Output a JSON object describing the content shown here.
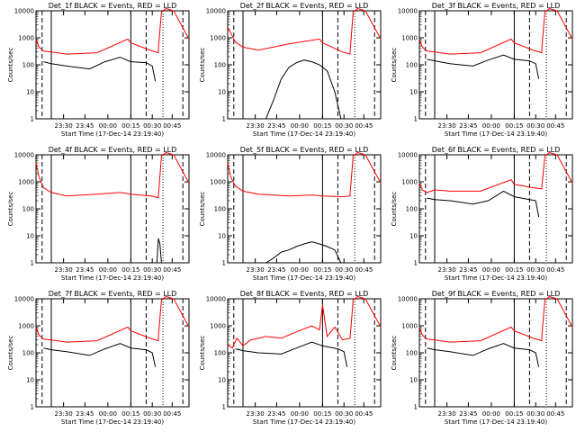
{
  "figure": {
    "xlabel": "Start Time (17-Dec-14 23:19:40)",
    "ylabel": "Counts/sec",
    "x_tick_labels": [
      "23:30",
      "23:45",
      "00:00",
      "00:15",
      "00:30",
      "00:45"
    ],
    "y_tick_labels": [
      "1",
      "10",
      "100",
      "1000",
      "10000"
    ]
  },
  "colors": {
    "events": "#000000",
    "lld": "#ff0000"
  },
  "chart_data": [
    {
      "type": "line",
      "title": "Det_1f BLACK = Events, RED = LLD",
      "xlabel": "Start Time (17-Dec-14 23:19:40)",
      "ylabel": "Counts/sec",
      "yscale": "log",
      "ylim": [
        1,
        10000
      ],
      "series": [
        {
          "name": "LLD",
          "color": "red",
          "x": [
            0,
            0.02,
            0.05,
            0.1,
            0.2,
            0.4,
            0.6,
            0.62,
            0.75,
            0.8,
            0.8,
            0.82,
            0.85,
            0.9,
            1.0
          ],
          "y": [
            900,
            450,
            320,
            300,
            250,
            280,
            900,
            650,
            340,
            280,
            400,
            9000,
            12000,
            10000,
            900
          ]
        },
        {
          "name": "Events",
          "color": "black",
          "x": [
            0.05,
            0.1,
            0.2,
            0.35,
            0.45,
            0.55,
            0.62,
            0.72,
            0.76,
            0.78
          ],
          "y": [
            130,
            110,
            90,
            70,
            130,
            190,
            130,
            120,
            90,
            25
          ]
        }
      ]
    },
    {
      "type": "line",
      "title": "Det_2f BLACK = Events, RED = LLD",
      "xlabel": "Start Time (17-Dec-14 23:19:40)",
      "ylabel": "Counts/sec",
      "yscale": "log",
      "ylim": [
        1,
        10000
      ],
      "series": [
        {
          "name": "LLD",
          "color": "red",
          "x": [
            0,
            0.02,
            0.05,
            0.1,
            0.2,
            0.4,
            0.6,
            0.62,
            0.75,
            0.8,
            0.8,
            0.82,
            0.85,
            0.9,
            1.0
          ],
          "y": [
            2500,
            1500,
            700,
            450,
            350,
            600,
            900,
            650,
            300,
            250,
            300,
            9000,
            12000,
            10000,
            900
          ]
        },
        {
          "name": "Events",
          "color": "black",
          "x": [
            0.25,
            0.3,
            0.35,
            0.4,
            0.45,
            0.5,
            0.55,
            0.6,
            0.65,
            0.7,
            0.74
          ],
          "y": [
            1,
            5,
            30,
            80,
            120,
            150,
            130,
            100,
            60,
            10,
            1
          ]
        }
      ]
    },
    {
      "type": "line",
      "title": "Det_3f BLACK = Events, RED = LLD",
      "xlabel": "Start Time (17-Dec-14 23:19:40)",
      "ylabel": "Counts/sec",
      "yscale": "log",
      "ylim": [
        1,
        10000
      ],
      "series": [
        {
          "name": "LLD",
          "color": "red",
          "x": [
            0,
            0.02,
            0.05,
            0.1,
            0.2,
            0.4,
            0.6,
            0.62,
            0.75,
            0.8,
            0.8,
            0.82,
            0.85,
            0.9,
            1.0
          ],
          "y": [
            900,
            450,
            320,
            300,
            250,
            280,
            900,
            650,
            340,
            280,
            400,
            9000,
            12000,
            10000,
            900
          ]
        },
        {
          "name": "Events",
          "color": "black",
          "x": [
            0.05,
            0.1,
            0.2,
            0.35,
            0.45,
            0.55,
            0.62,
            0.72,
            0.76,
            0.78
          ],
          "y": [
            160,
            140,
            110,
            90,
            150,
            230,
            160,
            140,
            110,
            30
          ]
        }
      ]
    },
    {
      "type": "line",
      "title": "Det_4f BLACK = Events, RED = LLD",
      "xlabel": "Start Time (17-Dec-14 23:19:40)",
      "ylabel": "Counts/sec",
      "yscale": "log",
      "ylim": [
        1,
        10000
      ],
      "series": [
        {
          "name": "LLD",
          "color": "red",
          "x": [
            0,
            0.02,
            0.05,
            0.1,
            0.2,
            0.4,
            0.55,
            0.62,
            0.75,
            0.8,
            0.8,
            0.82,
            0.85,
            0.9,
            1.0
          ],
          "y": [
            5000,
            1500,
            600,
            400,
            300,
            350,
            400,
            350,
            300,
            260,
            300,
            9000,
            12000,
            10000,
            900
          ]
        },
        {
          "name": "Events",
          "color": "black",
          "x": [
            0.79,
            0.8,
            0.81,
            0.82
          ],
          "y": [
            1,
            8,
            5,
            1
          ]
        }
      ]
    },
    {
      "type": "line",
      "title": "Det_5f BLACK = Events, RED = LLD",
      "xlabel": "Start Time (17-Dec-14 23:19:40)",
      "ylabel": "Counts/sec",
      "yscale": "log",
      "ylim": [
        1,
        10000
      ],
      "series": [
        {
          "name": "LLD",
          "color": "red",
          "x": [
            0,
            0.02,
            0.05,
            0.1,
            0.2,
            0.4,
            0.55,
            0.62,
            0.75,
            0.8,
            0.8,
            0.82,
            0.85,
            0.9,
            1.0
          ],
          "y": [
            5000,
            1500,
            700,
            450,
            350,
            300,
            320,
            300,
            280,
            300,
            350,
            9000,
            12000,
            10000,
            900
          ]
        },
        {
          "name": "Events",
          "color": "black",
          "x": [
            0.25,
            0.3,
            0.35,
            0.4,
            0.45,
            0.5,
            0.55,
            0.6,
            0.65,
            0.7,
            0.74
          ],
          "y": [
            1,
            1.5,
            2.5,
            3,
            4,
            5,
            6,
            5,
            4,
            3,
            1
          ]
        }
      ]
    },
    {
      "type": "line",
      "title": "Det_6f BLACK = Events, RED = LLD",
      "xlabel": "Start Time (17-Dec-14 23:19:40)",
      "ylabel": "Counts/sec",
      "yscale": "log",
      "ylim": [
        1,
        10000
      ],
      "series": [
        {
          "name": "LLD",
          "color": "red",
          "x": [
            0,
            0.02,
            0.05,
            0.1,
            0.2,
            0.4,
            0.6,
            0.62,
            0.75,
            0.8,
            0.8,
            0.82,
            0.85,
            0.9,
            1.0
          ],
          "y": [
            900,
            500,
            400,
            500,
            450,
            450,
            1200,
            800,
            600,
            550,
            600,
            9000,
            12000,
            10000,
            900
          ]
        },
        {
          "name": "Events",
          "color": "black",
          "x": [
            0.05,
            0.1,
            0.2,
            0.35,
            0.45,
            0.55,
            0.62,
            0.72,
            0.76,
            0.78
          ],
          "y": [
            250,
            220,
            200,
            150,
            200,
            450,
            280,
            220,
            200,
            50
          ]
        }
      ]
    },
    {
      "type": "line",
      "title": "Det_7f BLACK = Events, RED = LLD",
      "xlabel": "Start Time (17-Dec-14 23:19:40)",
      "ylabel": "Counts/sec",
      "yscale": "log",
      "ylim": [
        1,
        10000
      ],
      "series": [
        {
          "name": "LLD",
          "color": "red",
          "x": [
            0,
            0.02,
            0.05,
            0.1,
            0.2,
            0.4,
            0.6,
            0.62,
            0.75,
            0.8,
            0.8,
            0.82,
            0.85,
            0.9,
            1.0
          ],
          "y": [
            900,
            450,
            320,
            300,
            250,
            280,
            900,
            650,
            340,
            280,
            400,
            9000,
            12000,
            10000,
            900
          ]
        },
        {
          "name": "Events",
          "color": "black",
          "x": [
            0.05,
            0.1,
            0.2,
            0.35,
            0.45,
            0.55,
            0.62,
            0.72,
            0.76,
            0.78
          ],
          "y": [
            150,
            130,
            110,
            80,
            140,
            220,
            150,
            130,
            100,
            30
          ]
        }
      ]
    },
    {
      "type": "line",
      "title": "Det_8f BLACK = Events, RED = LLD",
      "xlabel": "Start Time (17-Dec-14 23:19:40)",
      "ylabel": "Counts/sec",
      "yscale": "log",
      "ylim": [
        1,
        10000
      ],
      "series": [
        {
          "name": "LLD",
          "color": "red",
          "x": [
            0,
            0.03,
            0.06,
            0.1,
            0.15,
            0.25,
            0.35,
            0.45,
            0.55,
            0.6,
            0.62,
            0.65,
            0.7,
            0.75,
            0.8,
            0.82,
            0.85,
            0.9,
            1.0
          ],
          "y": [
            200,
            150,
            350,
            180,
            300,
            400,
            350,
            600,
            1000,
            700,
            6000,
            400,
            900,
            300,
            350,
            9000,
            12000,
            10000,
            900
          ]
        },
        {
          "name": "Events",
          "color": "black",
          "x": [
            0.05,
            0.1,
            0.2,
            0.35,
            0.45,
            0.55,
            0.62,
            0.72,
            0.76,
            0.78
          ],
          "y": [
            140,
            120,
            100,
            90,
            150,
            250,
            180,
            140,
            110,
            30
          ]
        }
      ]
    },
    {
      "type": "line",
      "title": "Det_9f BLACK = Events, RED = LLD",
      "xlabel": "Start Time (17-Dec-14 23:19:40)",
      "ylabel": "Counts/sec",
      "yscale": "log",
      "ylim": [
        1,
        10000
      ],
      "series": [
        {
          "name": "LLD",
          "color": "red",
          "x": [
            0,
            0.02,
            0.05,
            0.1,
            0.2,
            0.4,
            0.6,
            0.62,
            0.75,
            0.8,
            0.8,
            0.82,
            0.85,
            0.9,
            1.0
          ],
          "y": [
            900,
            450,
            320,
            300,
            250,
            280,
            900,
            650,
            340,
            280,
            400,
            9000,
            12000,
            10000,
            900
          ]
        },
        {
          "name": "Events",
          "color": "black",
          "x": [
            0.05,
            0.1,
            0.2,
            0.35,
            0.45,
            0.55,
            0.62,
            0.72,
            0.76,
            0.78
          ],
          "y": [
            150,
            130,
            110,
            80,
            140,
            220,
            150,
            130,
            100,
            30
          ]
        }
      ]
    }
  ]
}
